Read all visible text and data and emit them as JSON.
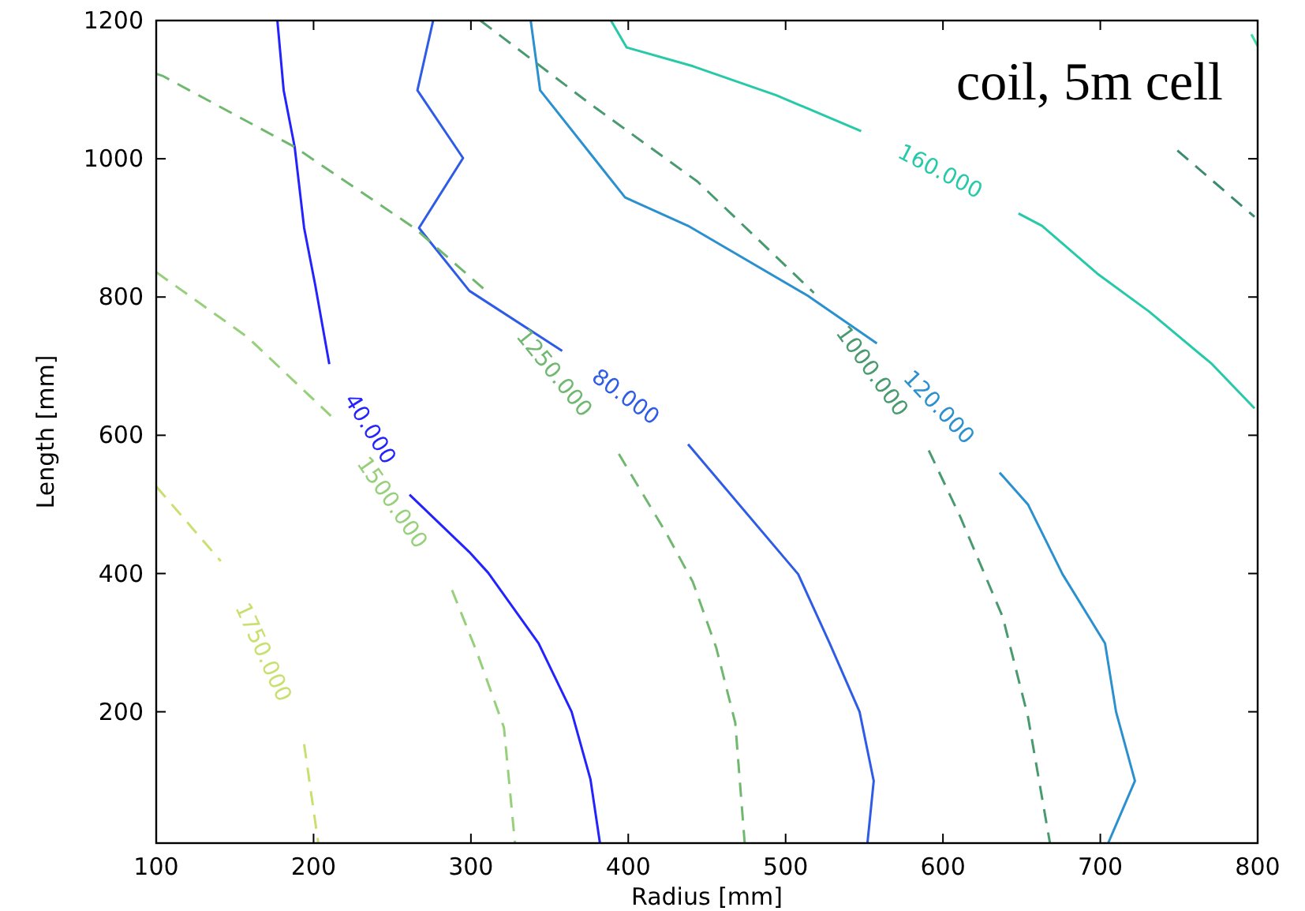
{
  "chart_data": {
    "type": "line",
    "xlabel": "Radius [mm]",
    "ylabel": "Length [mm]",
    "xlim": [
      100,
      800
    ],
    "ylim": [
      10,
      1200
    ],
    "xticks": [
      100,
      200,
      300,
      400,
      500,
      600,
      700,
      800
    ],
    "yticks": [
      200,
      400,
      600,
      800,
      1000,
      1200
    ],
    "grid": false,
    "marker": "none",
    "annotations": [
      "coil, 5m cell"
    ],
    "series": [
      {
        "name": "40.000",
        "color": "#2323ff",
        "line_style": "solid",
        "x": [
          177,
          181,
          188,
          194,
          201,
          210,
          null,
          261,
          299,
          311,
          343,
          364,
          376,
          382
        ],
        "values": [
          1200,
          1099,
          1017,
          900,
          818,
          703,
          null,
          514,
          431,
          401,
          299,
          200,
          102,
          10
        ]
      },
      {
        "name": "80.000",
        "color": "#2e5ce6",
        "line_style": "solid",
        "x": [
          276,
          266,
          295,
          267,
          299,
          358,
          null,
          438,
          508,
          528,
          547,
          556,
          552
        ],
        "values": [
          1200,
          1099,
          1001,
          900,
          809,
          722,
          null,
          587,
          399,
          299,
          200,
          100,
          10
        ]
      },
      {
        "name": "120.000",
        "color": "#2a90d0",
        "line_style": "solid",
        "x": [
          338,
          344,
          398,
          438,
          514,
          558,
          null,
          636,
          654,
          676,
          703,
          710,
          722,
          705
        ],
        "values": [
          1200,
          1099,
          944,
          903,
          802,
          733,
          null,
          546,
          500,
          399,
          299,
          200,
          100,
          10
        ]
      },
      {
        "name": "160.000",
        "color": "#26c9a8",
        "line_style": "solid",
        "x": [
          389,
          399,
          441,
          494,
          548,
          null,
          648,
          663,
          698,
          731,
          771,
          798
        ],
        "values": [
          1200,
          1161,
          1134,
          1092,
          1040,
          null,
          921,
          903,
          834,
          779,
          703,
          639
        ]
      },
      {
        "color": "#3de0a0",
        "line_style": "solid",
        "x": [
          796,
          800
        ],
        "values": [
          1180,
          1163
        ]
      },
      {
        "name": "1000.000",
        "color": "#4a9a70",
        "line_style": "dashed",
        "x": [
          306,
          376,
          444,
          518,
          null,
          591,
          611,
          638,
          654,
          668
        ],
        "values": [
          1200,
          1079,
          967,
          806,
          null,
          578,
          482,
          337,
          193,
          10
        ]
      },
      {
        "name": "1250.000",
        "color": "#70b870",
        "line_style": "dashed",
        "x": [
          100,
          104,
          188,
          264,
          311,
          null,
          394,
          424,
          441,
          456,
          468,
          474
        ],
        "values": [
          1123,
          1120,
          1017,
          900,
          806,
          null,
          573,
          459,
          388,
          292,
          184,
          10
        ]
      },
      {
        "name": "1500.000",
        "color": "#96d07a",
        "line_style": "dashed",
        "x": [
          100,
          158,
          211,
          null,
          288,
          304,
          321,
          328
        ],
        "values": [
          836,
          742,
          628,
          null,
          376,
          285,
          177,
          10
        ]
      },
      {
        "name": "1750.000",
        "color": "#c8e070",
        "line_style": "dashed",
        "x": [
          100,
          141,
          null,
          194,
          203
        ],
        "values": [
          526,
          418,
          null,
          153,
          10
        ]
      },
      {
        "color": "#3e8a6e",
        "line_style": "dashed",
        "x": [
          749,
          798
        ],
        "values": [
          1012,
          916
        ]
      }
    ]
  }
}
